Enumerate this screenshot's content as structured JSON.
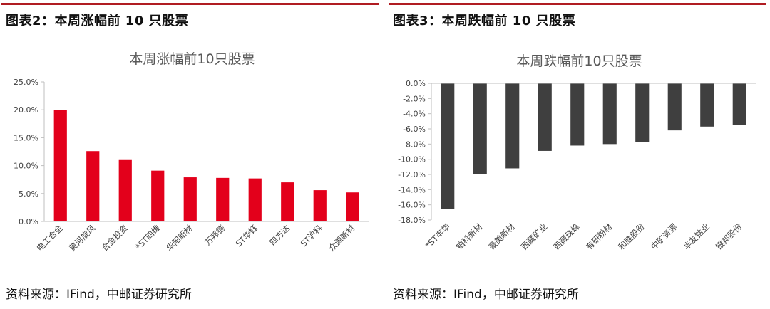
{
  "figures": [
    {
      "label": "图表2：本周涨幅前 10 只股票",
      "source": "资料来源：IFind，中邮证券研究所"
    },
    {
      "label": "图表3：本周跌幅前 10 只股票",
      "source": "资料来源：IFind，中邮证券研究所"
    }
  ],
  "chart_data": [
    {
      "type": "bar",
      "title": "本周涨幅前10只股票",
      "categories": [
        "电工合金",
        "黄河旋风",
        "合金投资",
        "*ST四维",
        "华阳新材",
        "万邦德",
        "ST华钰",
        "四方达",
        "ST沪科",
        "众源新材"
      ],
      "values": [
        20.0,
        12.6,
        11.0,
        9.1,
        7.9,
        7.8,
        7.7,
        7.0,
        5.6,
        5.2
      ],
      "ylim": [
        0,
        25
      ],
      "yticks": [
        0,
        5,
        10,
        15,
        20,
        25
      ],
      "ytick_labels": [
        "0.0%",
        "5.0%",
        "10.0%",
        "15.0%",
        "20.0%",
        "25.0%"
      ],
      "color": "#e3001b",
      "grid": false,
      "legend": "none"
    },
    {
      "type": "bar",
      "title": "本周跌幅前10只股票",
      "categories": [
        "*ST丰华",
        "铂科新材",
        "豪美新材",
        "西藏矿业",
        "西藏珠峰",
        "有研粉材",
        "和胜股份",
        "中矿资源",
        "华友钴业",
        "银邦股份"
      ],
      "values": [
        -16.5,
        -12.0,
        -11.2,
        -8.9,
        -8.2,
        -8.0,
        -7.7,
        -6.2,
        -5.7,
        -5.5
      ],
      "ylim": [
        -18,
        0
      ],
      "yticks": [
        0,
        -2,
        -4,
        -6,
        -8,
        -10,
        -12,
        -14,
        -16,
        -18
      ],
      "ytick_labels": [
        "0.0%",
        "-2.0%",
        "-4.0%",
        "-6.0%",
        "-8.0%",
        "-10.0%",
        "-12.0%",
        "-14.0%",
        "-16.0%",
        "-18.0%"
      ],
      "color": "#3f3f3f",
      "grid": false,
      "legend": "none"
    }
  ]
}
